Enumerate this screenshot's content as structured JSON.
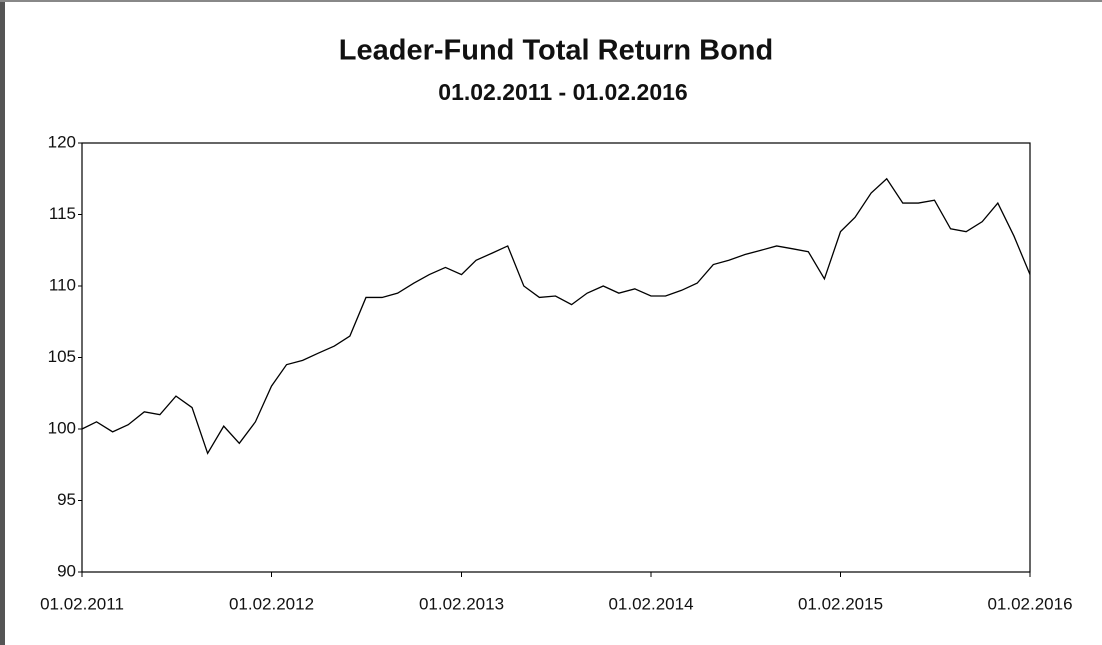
{
  "chart_data": {
    "type": "line",
    "title": "Leader-Fund Total Return Bond",
    "subtitle": "01.02.2011 - 01.02.2016",
    "x": [
      "01.02.2011",
      "01.03.2011",
      "01.04.2011",
      "01.05.2011",
      "01.06.2011",
      "01.07.2011",
      "01.08.2011",
      "01.09.2011",
      "01.10.2011",
      "01.11.2011",
      "01.12.2011",
      "01.01.2012",
      "01.02.2012",
      "01.03.2012",
      "01.04.2012",
      "01.05.2012",
      "01.06.2012",
      "01.07.2012",
      "01.08.2012",
      "01.09.2012",
      "01.10.2012",
      "01.11.2012",
      "01.12.2012",
      "01.01.2013",
      "01.02.2013",
      "01.03.2013",
      "01.04.2013",
      "01.05.2013",
      "01.06.2013",
      "01.07.2013",
      "01.08.2013",
      "01.09.2013",
      "01.10.2013",
      "01.11.2013",
      "01.12.2013",
      "01.01.2014",
      "01.02.2014",
      "01.03.2014",
      "01.04.2014",
      "01.05.2014",
      "01.06.2014",
      "01.07.2014",
      "01.08.2014",
      "01.09.2014",
      "01.10.2014",
      "01.11.2014",
      "01.12.2014",
      "01.01.2015",
      "01.02.2015",
      "01.03.2015",
      "01.04.2015",
      "01.05.2015",
      "01.06.2015",
      "01.07.2015",
      "01.08.2015",
      "01.09.2015",
      "01.10.2015",
      "01.11.2015",
      "01.12.2015",
      "01.01.2016",
      "01.02.2016"
    ],
    "values": [
      100,
      100.5,
      99.8,
      100.3,
      101.2,
      101,
      102.3,
      101.5,
      98.3,
      100.2,
      99,
      100.5,
      103,
      104.5,
      104.8,
      105.3,
      105.8,
      106.5,
      109.2,
      109.2,
      109.5,
      110.2,
      110.8,
      111.3,
      110.8,
      111.8,
      112.3,
      112.8,
      110,
      109.2,
      109.3,
      108.7,
      109.5,
      110,
      109.5,
      109.8,
      109.3,
      109.3,
      109.7,
      110.2,
      111.5,
      111.8,
      112.2,
      112.5,
      112.8,
      112.6,
      112.4,
      110.5,
      113.8,
      114.8,
      116.5,
      117.5,
      115.8,
      115.8,
      116,
      114,
      113.8,
      114.5,
      115.8,
      113.5,
      110.8
    ],
    "color": "#000000",
    "xlim": [
      "01.02.2011",
      "01.02.2016"
    ],
    "xticks": [
      "01.02.2011",
      "01.02.2012",
      "01.02.2013",
      "01.02.2014",
      "01.02.2015",
      "01.02.2016"
    ],
    "ylim": [
      90,
      120
    ],
    "yticks": [
      90,
      95,
      100,
      105,
      110,
      115,
      120
    ],
    "grid": false
  }
}
